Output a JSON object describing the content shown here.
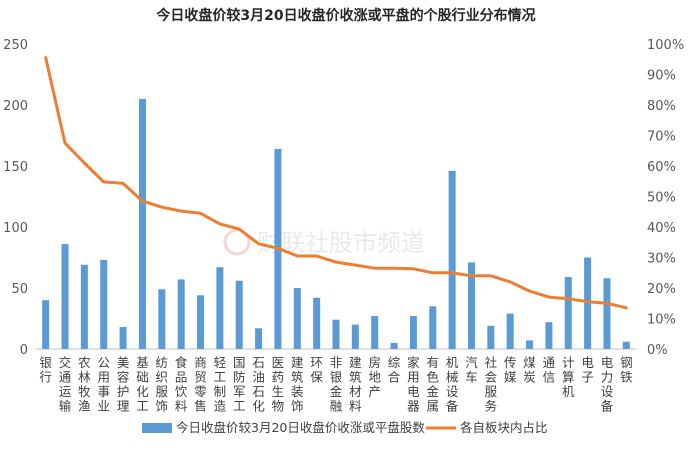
{
  "chart_data": {
    "type": "bar+line",
    "title": "今日收盘价较3月20日收盘价收涨或平盘的个股行业分布情况",
    "categories": [
      "银行",
      "交通运输",
      "农林牧渔",
      "公用事业",
      "美容护理",
      "基础化工",
      "纺织服饰",
      "食品饮料",
      "商贸零售",
      "轻工制造",
      "国防军工",
      "石油石化",
      "医药生物",
      "建筑装饰",
      "环保",
      "非银金融",
      "建筑材料",
      "房地产",
      "综合",
      "家用电器",
      "有色金属",
      "机械设备",
      "汽车",
      "社会服务",
      "传媒",
      "煤炭",
      "通信",
      "计算机",
      "电子",
      "电力设备",
      "钢铁"
    ],
    "series": [
      {
        "name": "今日收盘价较3月20日收盘价收涨或平盘股数",
        "type": "bar",
        "axis": "left",
        "color": "#5B9BD5",
        "values": [
          40,
          86,
          69,
          73,
          18,
          205,
          49,
          57,
          44,
          67,
          56,
          17,
          164,
          50,
          42,
          24,
          20,
          27,
          5,
          27,
          35,
          146,
          71,
          19,
          29,
          7,
          22,
          59,
          75,
          58,
          6
        ]
      },
      {
        "name": "各自板块内占比",
        "type": "line",
        "axis": "right",
        "color": "#ED7D31",
        "values": [
          95.5,
          67.5,
          61,
          54.8,
          54.3,
          48.5,
          46.5,
          45.2,
          44.5,
          41,
          39.3,
          34.5,
          33,
          30.5,
          30.5,
          28.5,
          27.5,
          26.5,
          26.5,
          26.3,
          25,
          25,
          24,
          24,
          22,
          19,
          17,
          16.5,
          15.5,
          15,
          13.5
        ]
      }
    ],
    "y_left": {
      "min": 0,
      "max": 250,
      "ticks": [
        0,
        50,
        100,
        150,
        200,
        250
      ]
    },
    "y_right": {
      "min": 0,
      "max": 100,
      "ticks": [
        "0%",
        "10%",
        "20%",
        "30%",
        "40%",
        "50%",
        "60%",
        "70%",
        "80%",
        "90%",
        "100%"
      ]
    },
    "grid": false,
    "legend_position": "bottom"
  },
  "watermark": {
    "logo": "C",
    "text": "财联社股市频道"
  }
}
